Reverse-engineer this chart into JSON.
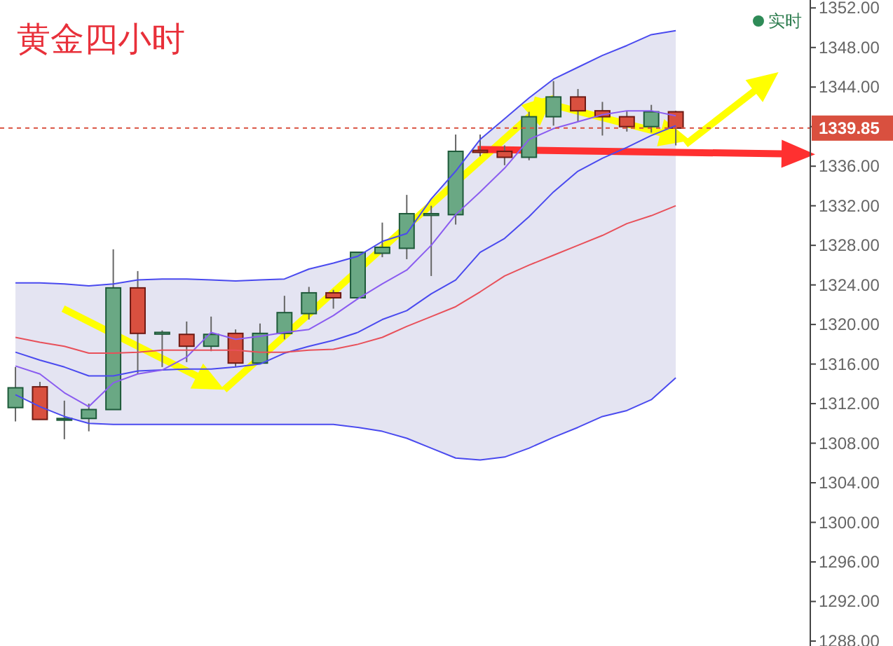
{
  "chart_data": {
    "type": "candlestick",
    "title": "黄金四小时",
    "annotations": [
      "实时"
    ],
    "categories": [
      null,
      null,
      null,
      null,
      null,
      null,
      null,
      null,
      null,
      null,
      null,
      null,
      null,
      null,
      null,
      null,
      null,
      null,
      null,
      null,
      null,
      null,
      null,
      null,
      null,
      null,
      null,
      null,
      null,
      null,
      null,
      null,
      null
    ],
    "ohlc": [
      [
        1311.6,
        1315.7,
        1310.2,
        1313.6
      ],
      [
        1313.7,
        1314.2,
        1310.4,
        1310.4
      ],
      [
        1310.4,
        1312.3,
        1308.4,
        1310.5
      ],
      [
        1310.5,
        1312.0,
        1309.2,
        1311.4
      ],
      [
        1311.4,
        1327.6,
        1311.4,
        1323.7
      ],
      [
        1323.7,
        1325.4,
        1315.0,
        1319.1
      ],
      [
        1319.2,
        1319.4,
        1315.7,
        1319.2
      ],
      [
        1319.0,
        1320.3,
        1316.2,
        1317.8
      ],
      [
        1317.8,
        1320.8,
        1317.3,
        1319.0
      ],
      [
        1319.1,
        1319.5,
        1315.7,
        1316.1
      ],
      [
        1316.1,
        1320.1,
        1316.1,
        1319.1
      ],
      [
        1319.1,
        1322.9,
        1318.5,
        1321.2
      ],
      [
        1321.1,
        1323.8,
        1320.5,
        1323.2
      ],
      [
        1323.2,
        1323.5,
        1321.6,
        1322.7
      ],
      [
        1322.7,
        1327.3,
        1322.7,
        1327.3
      ],
      [
        1327.2,
        1330.3,
        1326.8,
        1327.8
      ],
      [
        1327.7,
        1333.1,
        1326.6,
        1331.2
      ],
      [
        1331.2,
        1332.0,
        1324.9,
        1331.2
      ],
      [
        1331.1,
        1339.2,
        1330.1,
        1337.5
      ],
      [
        1337.6,
        1339.2,
        1337.0,
        1337.4
      ],
      [
        1337.5,
        1338.1,
        1336.1,
        1336.9
      ],
      [
        1336.9,
        1341.5,
        1336.6,
        1341.0
      ],
      [
        1341.0,
        1344.6,
        1340.1,
        1343.0
      ],
      [
        1343.0,
        1343.8,
        1340.5,
        1341.6
      ],
      [
        1341.6,
        1342.5,
        1339.1,
        1341.0
      ],
      [
        1341.0,
        1341.6,
        1339.5,
        1340.0
      ],
      [
        1340.0,
        1342.2,
        1339.4,
        1341.5
      ],
      [
        1341.5,
        1341.6,
        1338.1,
        1339.85
      ],
      null,
      null,
      null,
      null,
      null
    ],
    "colors": [
      "#6aa884",
      "#d9503f",
      "#2e6e4a",
      "#6aa884",
      "#6aa884",
      "#d9503f",
      "#8ec0a0",
      "#d9503f",
      "#6aa884",
      "#d9503f",
      "#6aa884",
      "#6aa884",
      "#6aa884",
      "#d9503f",
      "#6aa884",
      "#6aa884",
      "#6aa884",
      "#8ec0a0",
      "#6aa884",
      "#d9503f",
      "#d9503f",
      "#6aa884",
      "#6aa884",
      "#d9503f",
      "#d9503f",
      "#d9503f",
      "#6aa884",
      "#d9503f",
      null,
      null,
      null,
      null,
      null
    ],
    "series": [
      {
        "type": "line",
        "color": "#4a4aef",
        "values": [
          1317.2,
          1316.4,
          1315.7,
          1314.8,
          1314.8,
          1315.3,
          1315.4,
          1315.5,
          1315.5,
          1315.7,
          1316.0,
          1317.1,
          1317.8,
          1318.4,
          1319.2,
          1320.5,
          1321.4,
          1323.1,
          1324.5,
          1327.3,
          1328.7,
          1330.9,
          1333.4,
          1335.5,
          1336.8,
          1337.9,
          1339.1,
          1340.1,
          null,
          null,
          null,
          null,
          null
        ],
        "lower": [
          1312.9,
          1311.7,
          1310.7,
          1310.0,
          1309.9,
          1309.9,
          1309.9,
          1309.9,
          1309.9,
          1309.9,
          1309.9,
          1309.9,
          1309.9,
          1309.9,
          1309.6,
          1309.2,
          1308.5,
          1307.5,
          1306.5,
          1306.3,
          1306.6,
          1307.5,
          1308.6,
          1309.6,
          1310.7,
          1311.3,
          1312.4,
          1314.6,
          null,
          null,
          null,
          null,
          null
        ],
        "upper": [
          1324.2,
          1324.2,
          1324.1,
          1323.9,
          1324.1,
          1324.5,
          1324.6,
          1324.6,
          1324.5,
          1324.4,
          1324.5,
          1324.6,
          1325.6,
          1326.2,
          1326.9,
          1328.4,
          1329.2,
          1332.7,
          1335.5,
          1338.7,
          1340.8,
          1342.9,
          1344.8,
          1346.0,
          1347.2,
          1348.2,
          1349.3,
          1349.7,
          null,
          null,
          null,
          null,
          null
        ]
      },
      {
        "type": "line",
        "color": "#4a4aef",
        "values": [
          1324.2,
          1324.2,
          1324.1,
          1323.9,
          1324.1,
          1324.5,
          1324.6,
          1324.6,
          1324.5,
          1324.4,
          1324.5,
          1324.6,
          1325.6,
          1326.2,
          1326.9,
          1328.4,
          1329.2,
          1332.7,
          1335.5,
          1338.7,
          1340.8,
          1342.9,
          1344.8,
          1346.0,
          1347.2,
          1348.2,
          1349.3,
          1349.7,
          null,
          null,
          null,
          null,
          null
        ]
      },
      {
        "type": "line",
        "color": "#4a4aef",
        "values": [
          1312.9,
          1311.7,
          1310.7,
          1310.0,
          1309.9,
          1309.9,
          1309.9,
          1309.9,
          1309.9,
          1309.9,
          1309.9,
          1309.9,
          1309.9,
          1309.9,
          1309.6,
          1309.2,
          1308.5,
          1307.5,
          1306.5,
          1306.3,
          1306.6,
          1307.5,
          1308.6,
          1309.6,
          1310.7,
          1311.3,
          1312.4,
          1314.6,
          null,
          null,
          null,
          null,
          null
        ]
      },
      {
        "type": "line",
        "color": "#8a5cf0",
        "values": [
          1315.8,
          1315.0,
          1313.1,
          1311.7,
          1314.1,
          1315.0,
          1315.4,
          1316.7,
          1319.2,
          1318.5,
          1318.8,
          1319.2,
          1319.5,
          1320.9,
          1322.6,
          1324.1,
          1325.5,
          1328.0,
          1331.1,
          1333.4,
          1335.8,
          1338.7,
          1339.8,
          1340.5,
          1341.2,
          1341.6,
          1341.6,
          1341.1,
          null,
          null,
          null,
          null,
          null
        ]
      },
      {
        "type": "line",
        "color": "#e8505a",
        "values": [
          1318.7,
          1318.2,
          1317.8,
          1317.1,
          1317.1,
          1317.2,
          1317.4,
          1317.4,
          1317.4,
          1317.4,
          1317.2,
          1317.2,
          1317.4,
          1317.5,
          1318.0,
          1318.7,
          1319.8,
          1320.8,
          1321.8,
          1323.3,
          1324.9,
          1326.0,
          1327.0,
          1328.0,
          1329.0,
          1330.2,
          1331.0,
          1332.0,
          null,
          null,
          null,
          null,
          null
        ]
      }
    ],
    "ylim": [
      1287.5,
      1352.8
    ],
    "yticks": [
      {
        "value": 1352,
        "label": "1352.00"
      },
      {
        "value": 1348,
        "label": "1348.00"
      },
      {
        "value": 1344,
        "label": "1344.00"
      },
      {
        "value": 1340,
        "label": null
      },
      {
        "value": 1336,
        "label": "1336.00"
      },
      {
        "value": 1332,
        "label": "1332.00"
      },
      {
        "value": 1328,
        "label": "1328.00"
      },
      {
        "value": 1324,
        "label": "1324.00"
      },
      {
        "value": 1320,
        "label": "1320.00"
      },
      {
        "value": 1316,
        "label": "1316.00"
      },
      {
        "value": 1312,
        "label": "1312.00"
      },
      {
        "value": 1308,
        "label": "1308.00"
      },
      {
        "value": 1304,
        "label": "1304.00"
      },
      {
        "value": 1300,
        "label": "1300.00"
      },
      {
        "value": 1296,
        "label": "1296.00"
      },
      {
        "value": 1292,
        "label": "1292.00"
      },
      {
        "value": 1288,
        "label": "1288.00"
      }
    ],
    "tick_labels": "y",
    "ref_lines": [
      {
        "axis": "y",
        "value": 1339.85,
        "label": "1339.85",
        "color": "#d9503f",
        "line_style": "dashed"
      }
    ]
  }
}
